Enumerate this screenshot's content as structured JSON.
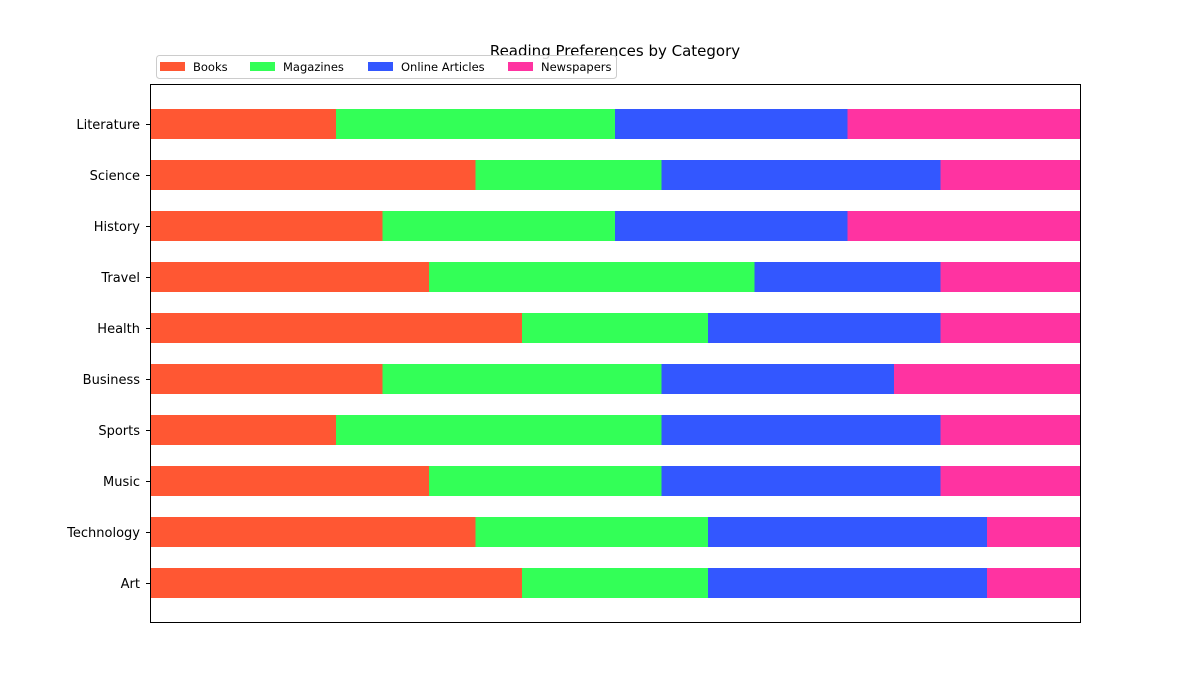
{
  "chart_data": {
    "type": "bar",
    "orientation": "horizontal",
    "stacked": true,
    "title": "Reading Preferences by Category",
    "xlabel": "",
    "ylabel": "",
    "categories": [
      "Literature",
      "Science",
      "History",
      "Travel",
      "Health",
      "Business",
      "Sports",
      "Music",
      "Technology",
      "Art"
    ],
    "series": [
      {
        "name": "Books",
        "color": "#ff5733",
        "values": [
          20,
          35,
          25,
          30,
          40,
          25,
          20,
          30,
          35,
          40
        ]
      },
      {
        "name": "Magazines",
        "color": "#33ff57",
        "values": [
          30,
          20,
          25,
          35,
          20,
          30,
          35,
          25,
          25,
          20
        ]
      },
      {
        "name": "Online Articles",
        "color": "#3357ff",
        "values": [
          25,
          30,
          25,
          20,
          25,
          25,
          30,
          30,
          30,
          30
        ]
      },
      {
        "name": "Newspapers",
        "color": "#ff33a1",
        "values": [
          25,
          15,
          25,
          15,
          15,
          20,
          15,
          15,
          10,
          10
        ]
      }
    ],
    "xlim": [
      0,
      100
    ],
    "x_ticks_visible": false,
    "grid": false,
    "legend_position": "top-left, above plot",
    "legend_columns": 4
  }
}
